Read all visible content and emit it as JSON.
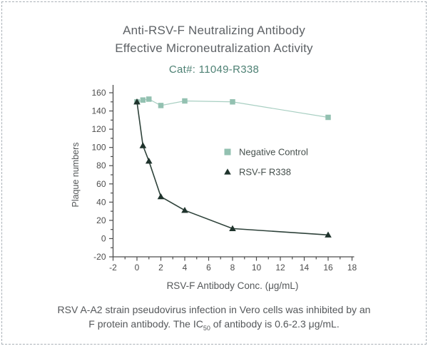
{
  "frame": {
    "border_color": "#a9b0b7"
  },
  "header": {
    "title_line1": "Anti-RSV-F Neutralizing Antibody",
    "title_line2": "Effective Microneutralization Activity",
    "catalog": "Cat#: 11049-R338",
    "title_color": "#5e6266",
    "catalog_color": "#4e8174"
  },
  "chart_data": {
    "type": "line",
    "title": "",
    "xlabel": "RSV-F Antibody Conc. (μg/mL)",
    "ylabel": "Plaque numbers",
    "xlim": [
      -2,
      18
    ],
    "ylim": [
      -20,
      160
    ],
    "x_major_ticks": [
      -2,
      0,
      2,
      4,
      6,
      8,
      10,
      12,
      14,
      16,
      18
    ],
    "x_minor_step": 1,
    "y_major_ticks": [
      -20,
      0,
      20,
      40,
      60,
      80,
      100,
      120,
      140,
      160
    ],
    "y_minor_step": 10,
    "grid": false,
    "legend_position": "center-right",
    "axis_color": "#4d4d4d",
    "tick_label_color": "#4d4d4d",
    "series": [
      {
        "name": "Negative Control",
        "marker": "square",
        "marker_color": "#93c1b1",
        "line_color": "#a8cfc2",
        "points": [
          [
            0,
            150
          ],
          [
            0.5,
            152
          ],
          [
            1,
            153
          ],
          [
            2,
            146
          ],
          [
            4,
            151
          ],
          [
            8,
            150
          ],
          [
            16,
            133
          ]
        ]
      },
      {
        "name": "RSV-F R338",
        "marker": "triangle",
        "marker_color": "#1f332c",
        "line_color": "#2e423a",
        "points": [
          [
            0,
            150
          ],
          [
            0.5,
            102
          ],
          [
            1,
            85
          ],
          [
            2,
            46
          ],
          [
            4,
            31
          ],
          [
            8,
            11
          ],
          [
            16,
            4
          ]
        ]
      }
    ]
  },
  "caption": {
    "line1": "RSV A-A2 strain pseudovirus infection in Vero cells was inhibited by an",
    "line2_pre": "F protein antibody. The IC",
    "line2_sub": "50",
    "line2_post": " of antibody is 0.6-2.3 μg/mL."
  }
}
